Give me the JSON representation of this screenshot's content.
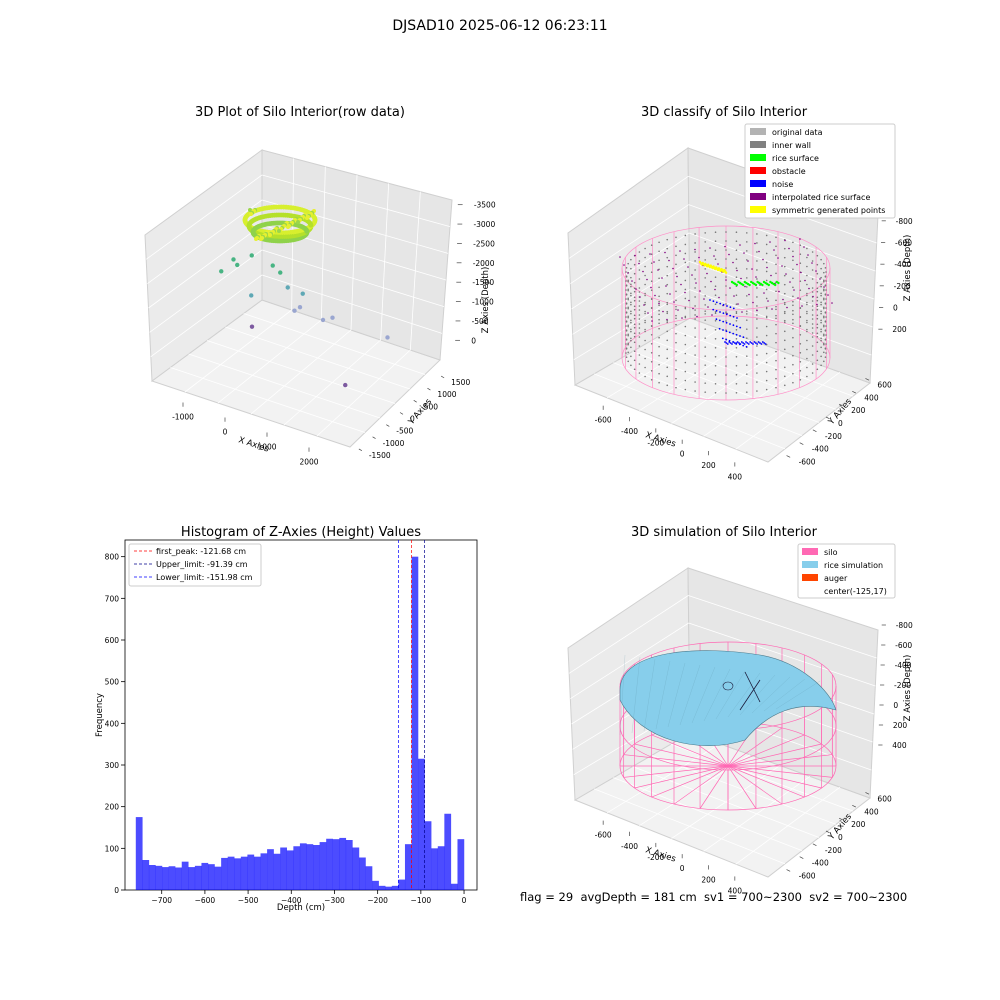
{
  "figure": {
    "suptitle": "DJSAD10 2025-06-12 06:23:11",
    "footer": "flag = 29  avgDepth = 181 cm  sv1 = 700~2300  sv2 = 700~2300"
  },
  "chart_data": [
    {
      "type": "scatter",
      "title": "3D Plot of Silo Interior(row data)",
      "xlabel": "X Axies",
      "ylabel": "Y Axies",
      "zlabel": "Z Axies (Depth)",
      "x_ticks": [
        "-1000",
        "0",
        "1000",
        "2000"
      ],
      "y_ticks": [
        "-1500",
        "-1000",
        "-500",
        "0",
        "500",
        "1000",
        "1500"
      ],
      "z_ticks": [
        "0",
        "-500",
        "-1000",
        "-1500",
        "-2000",
        "-2500",
        "-3000",
        "-3500"
      ],
      "outliers": [
        {
          "x": -1200,
          "y": 100,
          "z": -1900
        },
        {
          "x": -900,
          "y": 0,
          "z": -1500
        },
        {
          "x": -800,
          "y": -50,
          "z": -1600
        },
        {
          "x": -600,
          "y": 200,
          "z": -1400
        },
        {
          "x": -200,
          "y": 300,
          "z": -1600
        },
        {
          "x": 0,
          "y": 200,
          "z": -1700
        },
        {
          "x": 200,
          "y": 100,
          "z": -2000
        },
        {
          "x": 300,
          "y": 200,
          "z": -2600
        },
        {
          "x": 500,
          "y": 0,
          "z": -2400
        },
        {
          "x": 600,
          "y": -100,
          "z": -2000
        },
        {
          "x": 900,
          "y": 200,
          "z": -2700
        },
        {
          "x": 1100,
          "y": 200,
          "z": -2600
        },
        {
          "x": -400,
          "y": -300,
          "z": -2200
        },
        {
          "x": -300,
          "y": -500,
          "z": -2900
        },
        {
          "x": 2300,
          "y": 100,
          "z": -2800
        },
        {
          "x": 2000,
          "y": -1300,
          "z": -3600
        }
      ]
    },
    {
      "type": "scatter",
      "title": "3D classify of Silo Interior",
      "xlabel": "X Axies",
      "ylabel": "Y Axies",
      "zlabel": "Z Axies (Depth)",
      "x_ticks": [
        "-600",
        "-400",
        "-200",
        "0",
        "200",
        "400"
      ],
      "y_ticks": [
        "-600",
        "-400",
        "-200",
        "0",
        "200",
        "400",
        "600"
      ],
      "z_ticks": [
        "200",
        "0",
        "-200",
        "-400",
        "-600",
        "-800"
      ],
      "legend": [
        {
          "label": "original data",
          "color": "#b3b3b3"
        },
        {
          "label": "inner wall",
          "color": "#808080"
        },
        {
          "label": "rice surface",
          "color": "#00ff00"
        },
        {
          "label": "obstacle",
          "color": "#ff0000"
        },
        {
          "label": "noise",
          "color": "#0000ff"
        },
        {
          "label": "interpolated rice surface",
          "color": "#800080"
        },
        {
          "label": "symmetric generated points",
          "color": "#ffff00"
        }
      ]
    },
    {
      "type": "bar",
      "title": "Histogram of Z-Axies (Height) Values",
      "xlabel": "Depth (cm)",
      "ylabel": "Frequency",
      "xlim": [
        -785,
        30
      ],
      "ylim": [
        0,
        840
      ],
      "bin_start": -760,
      "bin_width": 15.2,
      "values": [
        175,
        72,
        60,
        58,
        55,
        57,
        54,
        68,
        55,
        58,
        65,
        62,
        56,
        77,
        80,
        76,
        80,
        85,
        80,
        88,
        98,
        87,
        102,
        95,
        105,
        112,
        110,
        108,
        115,
        123,
        122,
        125,
        120,
        102,
        78,
        57,
        22,
        10,
        8,
        10,
        25,
        110,
        800,
        315,
        165,
        100,
        105,
        183,
        15,
        122
      ],
      "x_ticks": [
        -700,
        -600,
        -500,
        -400,
        -300,
        -200,
        -100,
        0
      ],
      "y_ticks": [
        0,
        100,
        200,
        300,
        400,
        500,
        600,
        700,
        800
      ],
      "bar_color": "#0000ff",
      "lines": [
        {
          "label": "first_peak: -121.68 cm",
          "value": -121.68,
          "color": "#ff0000"
        },
        {
          "label": "Upper_limit: -91.39 cm",
          "value": -91.39,
          "color": "#00008b"
        },
        {
          "label": "Lower_limit: -151.98 cm",
          "value": -151.98,
          "color": "#0000ff"
        }
      ]
    },
    {
      "type": "scatter",
      "title": "3D simulation of Silo Interior",
      "xlabel": "X Axies",
      "ylabel": "Y Axies",
      "zlabel": "Z Axies (Depth)",
      "x_ticks": [
        "-600",
        "-400",
        "-200",
        "0",
        "200",
        "400"
      ],
      "y_ticks": [
        "-600",
        "-400",
        "-200",
        "0",
        "200",
        "400",
        "600"
      ],
      "z_ticks": [
        "400",
        "200",
        "0",
        "-200",
        "-400",
        "-600",
        "-800"
      ],
      "legend": [
        {
          "label": "silo",
          "color": "#ff69b4"
        },
        {
          "label": "rice simulation",
          "color": "#87ceeb"
        },
        {
          "label": "auger",
          "color": "#ff4500"
        },
        {
          "label": "center(-125,17)",
          "color": ""
        }
      ]
    }
  ]
}
